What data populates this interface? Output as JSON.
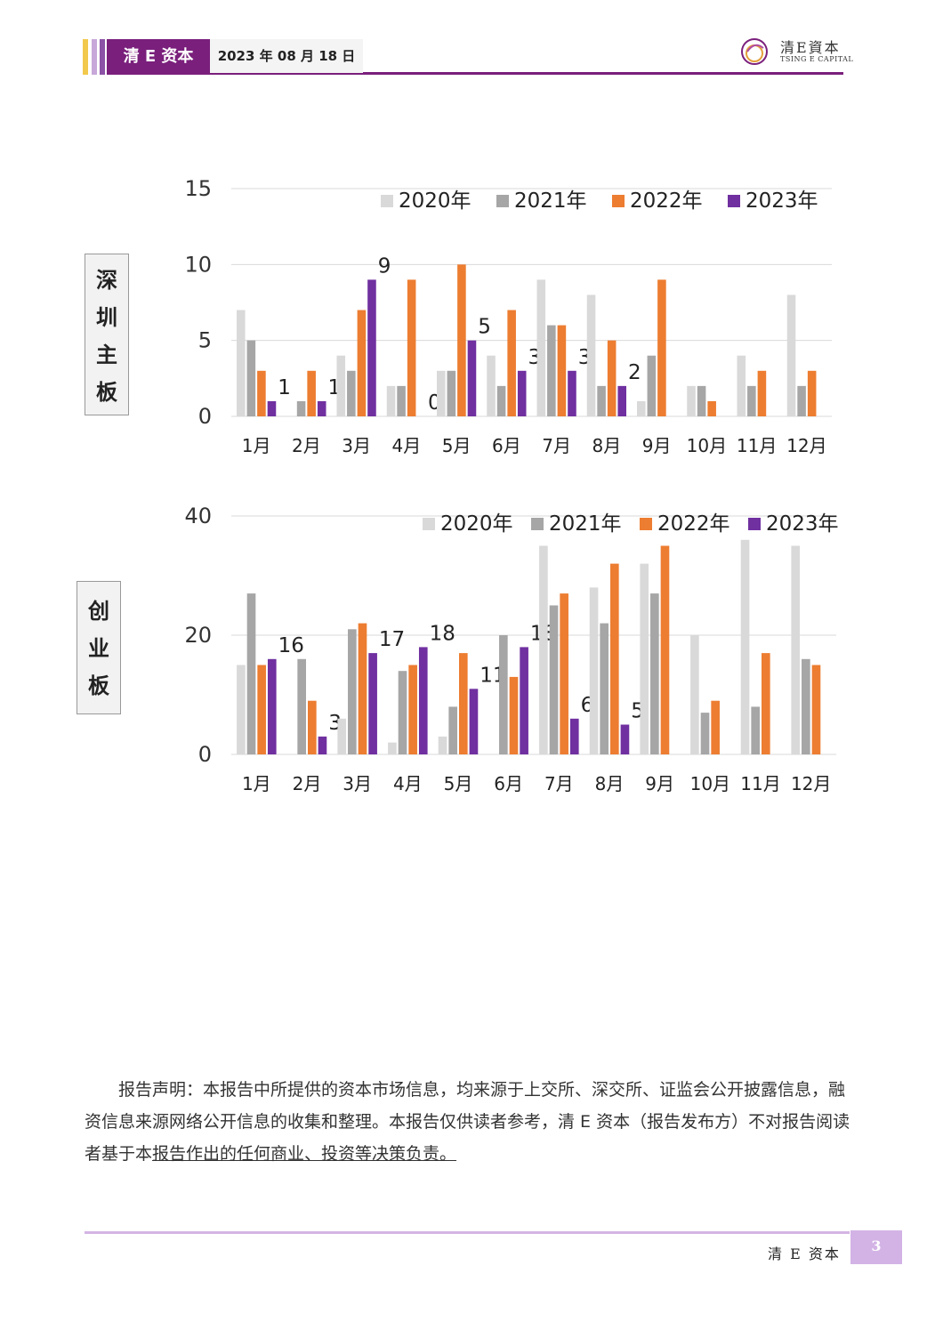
{
  "header": {
    "brand": "清 E 资本",
    "date": "2023 年 08 月 18 日",
    "logo_cn": "清E資本",
    "logo_en": "TSING E CAPITAL"
  },
  "sections": [
    {
      "label_chars": [
        "深",
        "圳",
        "主",
        "板"
      ]
    },
    {
      "label_chars": [
        "创",
        "业",
        "板"
      ]
    }
  ],
  "colors": {
    "2020": "#d9d9d9",
    "2021": "#a6a6a6",
    "2022": "#ed7d31",
    "2023": "#7030a0",
    "brand_purple": "#7a1f7c"
  },
  "chart_data": [
    {
      "type": "bar",
      "categories": [
        "1月",
        "2月",
        "3月",
        "4月",
        "5月",
        "6月",
        "7月",
        "8月",
        "9月",
        "10月",
        "11月",
        "12月"
      ],
      "series": [
        {
          "name": "2020年",
          "values": [
            7,
            0,
            4,
            2,
            3,
            4,
            9,
            8,
            1,
            2,
            4,
            8
          ]
        },
        {
          "name": "2021年",
          "values": [
            5,
            1,
            3,
            2,
            3,
            2,
            6,
            2,
            4,
            2,
            2,
            2
          ]
        },
        {
          "name": "2022年",
          "values": [
            3,
            3,
            7,
            9,
            10,
            7,
            6,
            5,
            9,
            1,
            3,
            3
          ]
        },
        {
          "name": "2023年",
          "values": [
            1,
            1,
            9,
            0,
            5,
            3,
            3,
            2,
            null,
            null,
            null,
            null
          ]
        }
      ],
      "data_labels_series": "2023年",
      "yticks": [
        0,
        5,
        10,
        15
      ],
      "ylim": [
        0,
        15
      ],
      "grid": true,
      "legend": "top-right"
    },
    {
      "type": "bar",
      "categories": [
        "1月",
        "2月",
        "3月",
        "4月",
        "5月",
        "6月",
        "7月",
        "8月",
        "9月",
        "10月",
        "11月",
        "12月"
      ],
      "series": [
        {
          "name": "2020年",
          "values": [
            15,
            0,
            6,
            2,
            3,
            0,
            35,
            28,
            32,
            20,
            36,
            35
          ]
        },
        {
          "name": "2021年",
          "values": [
            27,
            16,
            21,
            14,
            8,
            20,
            25,
            22,
            27,
            7,
            8,
            16
          ]
        },
        {
          "name": "2022年",
          "values": [
            15,
            9,
            22,
            15,
            17,
            13,
            27,
            32,
            35,
            9,
            17,
            15
          ]
        },
        {
          "name": "2023年",
          "values": [
            16,
            3,
            17,
            18,
            11,
            18,
            6,
            5,
            null,
            null,
            null,
            null
          ]
        }
      ],
      "data_labels_series": "2023年",
      "yticks": [
        0,
        20,
        40
      ],
      "ylim": [
        0,
        40
      ],
      "grid": true,
      "legend": "top-right"
    }
  ],
  "statement": {
    "text_plain": "报告声明：本报告中所提供的资本市场信息，均来源于上交所、深交所、证监会公开披露信息，融资信息来源网络公开信息的收集和整理。本报告仅供读者参考，清 E 资本（报告发布方）不对报告阅读者基于本",
    "text_underlined": "报告作出的任何商业、投资等决策负责。"
  },
  "footer": {
    "brand": "清 E 资本",
    "page": "3"
  }
}
